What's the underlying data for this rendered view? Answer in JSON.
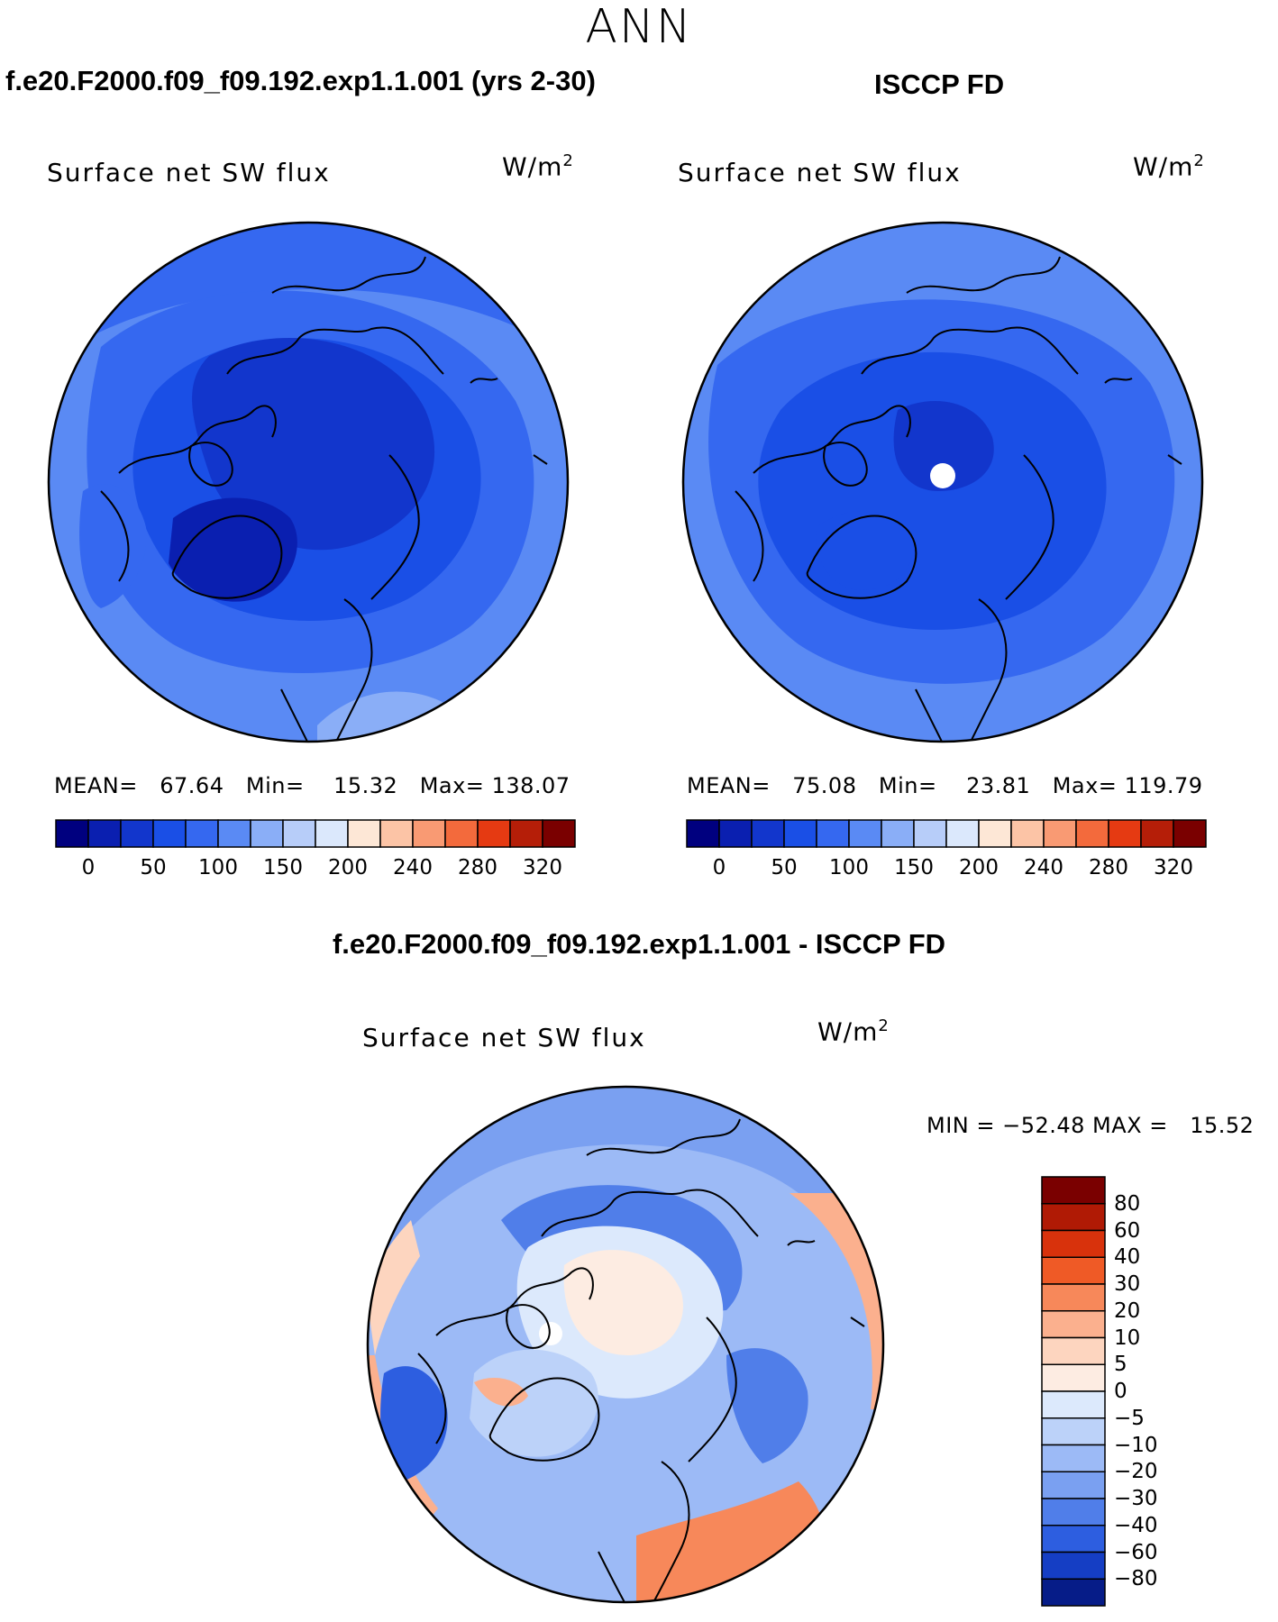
{
  "season": "ANN",
  "panels": [
    {
      "id": "model",
      "header": "f.e20.F2000.f09_f09.192.exp1.1.001 (yrs 2-30)",
      "variable": "Surface net SW flux",
      "units_base": "W/m",
      "units_exp": "2",
      "stats": {
        "mean_label": "MEAN=",
        "mean": "67.64",
        "min_label": "Min=",
        "min": "15.32",
        "max_label": "Max=",
        "max": "138.07"
      }
    },
    {
      "id": "obs",
      "header": "ISCCP FD",
      "variable": "Surface net SW flux",
      "units_base": "W/m",
      "units_exp": "2",
      "stats": {
        "mean_label": "MEAN=",
        "mean": "75.08",
        "min_label": "Min=",
        "min": "23.81",
        "max_label": "Max=",
        "max": "119.79"
      }
    }
  ],
  "abs_colorbar": {
    "colors": [
      "#00007f",
      "#0a1fb0",
      "#1236cc",
      "#1a4fe6",
      "#3568f0",
      "#5a8af4",
      "#8aaef7",
      "#b7cdf9",
      "#dbe8fc",
      "#fde7d6",
      "#fcc4a6",
      "#f99a73",
      "#f36a3c",
      "#e53a12",
      "#b51e08",
      "#7a0000"
    ],
    "ticks": [
      "0",
      "50",
      "100",
      "150",
      "200",
      "240",
      "280",
      "320"
    ]
  },
  "diff_panel": {
    "header": "f.e20.F2000.f09_f09.192.exp1.1.001 - ISCCP FD",
    "variable": "Surface net SW flux",
    "units_base": "W/m",
    "units_exp": "2",
    "stats": "MIN = −52.48 MAX =   15.52"
  },
  "diff_colorbar": {
    "colors_top_to_bottom": [
      "#7a0000",
      "#b01a05",
      "#d8320c",
      "#ef5a26",
      "#f7885a",
      "#fbb08e",
      "#fdd5bf",
      "#fdece2",
      "#dce9fc",
      "#bcd2f9",
      "#9cbaf6",
      "#7aa0f1",
      "#507ee9",
      "#2d5ee0",
      "#153ec4",
      "#061c88"
    ],
    "ticks": [
      "80",
      "60",
      "40",
      "30",
      "20",
      "10",
      "5",
      "0",
      "−5",
      "−10",
      "−20",
      "−30",
      "−40",
      "−60",
      "−80"
    ]
  },
  "colors": {
    "outline": "#000000",
    "background": "#ffffff",
    "missing_value": "#ffffff"
  }
}
